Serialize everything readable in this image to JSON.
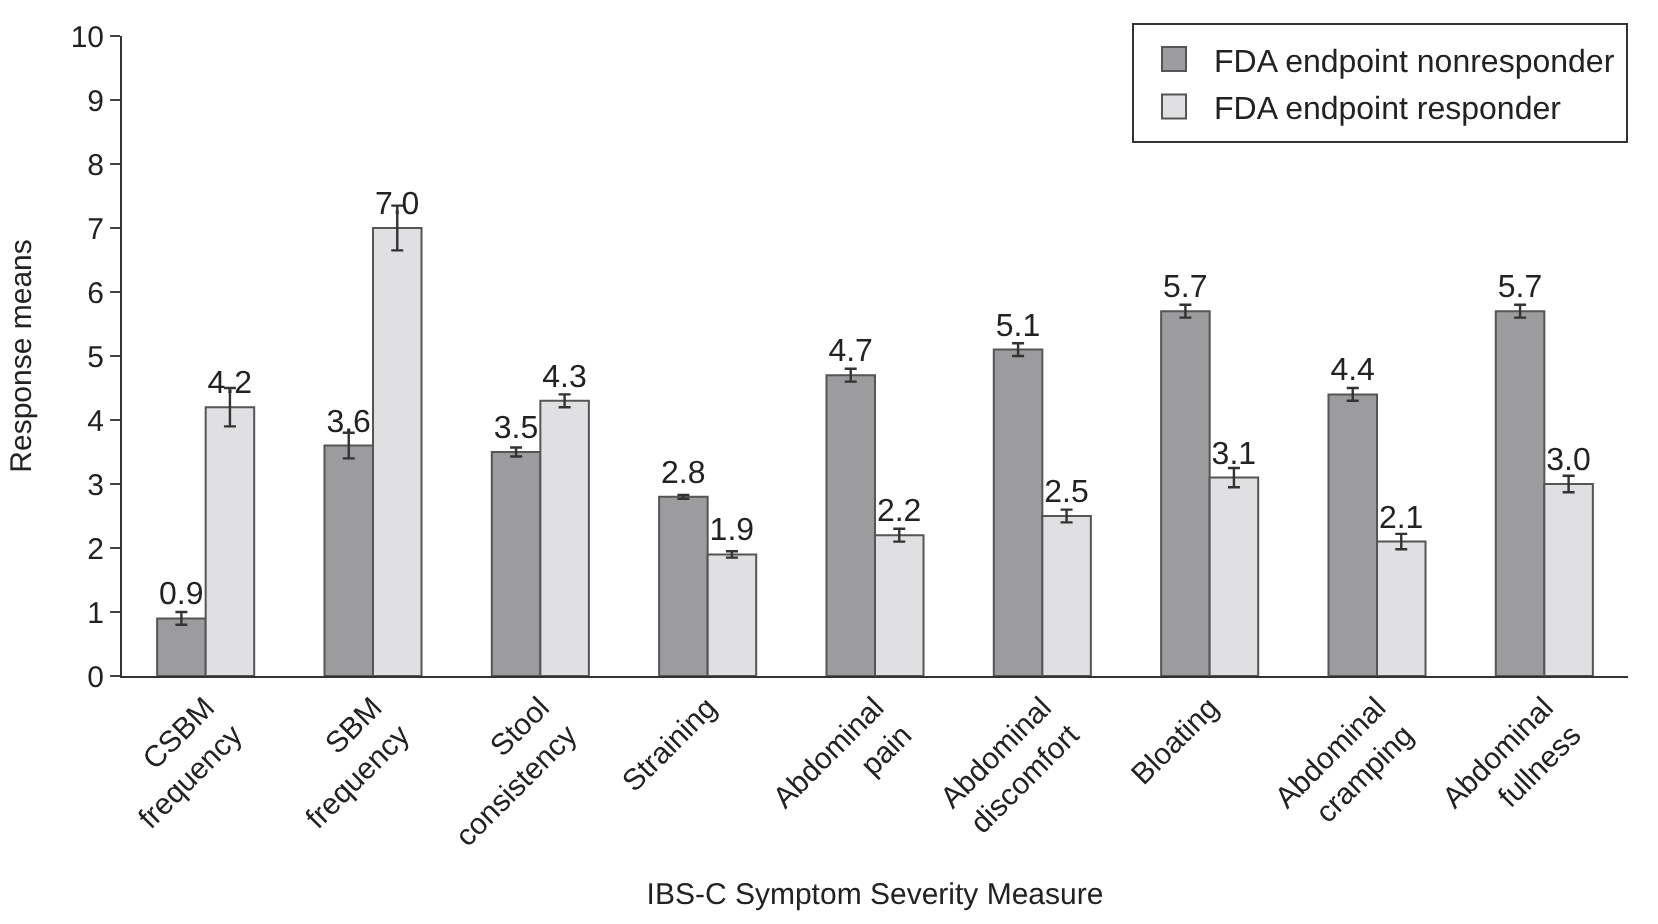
{
  "chart_data": {
    "type": "bar",
    "xlabel": "IBS-C Symptom Severity Measure",
    "ylabel": "Response means",
    "categories": [
      "CSBM\nfrequency",
      "SBM\nfrequency",
      "Stool\nconsistency",
      "Straining",
      "Abdominal\npain",
      "Abdominal\ndiscomfort",
      "Bloating",
      "Abdominal\ncramping",
      "Abdominal\nfullness"
    ],
    "series": [
      {
        "name": "FDA endpoint nonresponder",
        "color": "#9c9c9e",
        "values": [
          0.9,
          3.6,
          3.5,
          2.8,
          4.7,
          5.1,
          5.7,
          4.4,
          5.7
        ],
        "value_labels": [
          "0.9",
          "3.6",
          "3.5",
          "2.8",
          "4.7",
          "5.1",
          "5.7",
          "4.4",
          "5.7"
        ],
        "errors": [
          0.1,
          0.2,
          0.07,
          0.03,
          0.1,
          0.1,
          0.1,
          0.1,
          0.1
        ]
      },
      {
        "name": "FDA endpoint responder",
        "color": "#e0e0e2",
        "values": [
          4.2,
          7.0,
          4.3,
          1.9,
          2.2,
          2.5,
          3.1,
          2.1,
          3.0
        ],
        "value_labels": [
          "4.2",
          "7.0",
          "4.3",
          "1.9",
          "2.2",
          "2.5",
          "3.1",
          "2.1",
          "3.0"
        ],
        "errors": [
          0.3,
          0.35,
          0.1,
          0.05,
          0.1,
          0.1,
          0.15,
          0.12,
          0.13
        ]
      }
    ],
    "ylim": [
      0,
      10
    ],
    "yticks": [
      0,
      1,
      2,
      3,
      4,
      5,
      6,
      7,
      8,
      9,
      10
    ],
    "legend": "top right"
  }
}
